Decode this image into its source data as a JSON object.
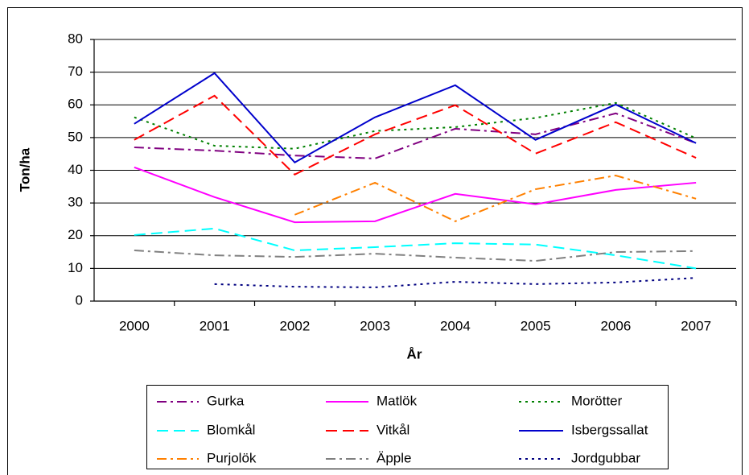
{
  "chart_data": {
    "type": "line",
    "x_label": "År",
    "y_label": "Ton/ha",
    "categories": [
      "2000",
      "2001",
      "2002",
      "2003",
      "2004",
      "2005",
      "2006",
      "2007"
    ],
    "ylim": [
      0,
      80
    ],
    "yticks": [
      0,
      10,
      20,
      30,
      40,
      50,
      60,
      70,
      80
    ],
    "grid": true,
    "series": [
      {
        "name": "Gurka",
        "color": "#800080",
        "dash": "dashdot",
        "values": [
          47,
          46,
          44.5,
          43.6,
          52.7,
          51,
          57.4,
          48.3
        ]
      },
      {
        "name": "Matlök",
        "color": "#ff00ff",
        "dash": "solid",
        "values": [
          40.9,
          31.8,
          24.1,
          24.4,
          32.8,
          29.6,
          34,
          36.2
        ]
      },
      {
        "name": "Morötter",
        "color": "#008000",
        "dash": "dot",
        "values": [
          56.2,
          47.5,
          46.6,
          52,
          53.2,
          56,
          60.6,
          49.8
        ]
      },
      {
        "name": "Blomkål",
        "color": "#00ffff",
        "dash": "dash",
        "values": [
          20.2,
          22.2,
          15.5,
          16.5,
          17.7,
          17.3,
          14,
          10
        ]
      },
      {
        "name": "Vitkål",
        "color": "#ff0000",
        "dash": "dash",
        "values": [
          49.3,
          62.8,
          38.7,
          51,
          59.9,
          45.1,
          54.7,
          43.8
        ]
      },
      {
        "name": "Isbergssallat",
        "color": "#0000cc",
        "dash": "solid",
        "values": [
          54.2,
          69.7,
          42.4,
          56.2,
          66,
          49.3,
          60.1,
          48.3
        ]
      },
      {
        "name": "Purjolök",
        "color": "#ff8000",
        "dash": "dashdot",
        "values": [
          null,
          null,
          26.4,
          36.2,
          24.4,
          34.2,
          38.4,
          31.3
        ]
      },
      {
        "name": "Äpple",
        "color": "#808080",
        "dash": "dashdot",
        "values": [
          15.5,
          14,
          13.5,
          14.5,
          13.3,
          12.3,
          15,
          15.3
        ]
      },
      {
        "name": "Jordgubbar",
        "color": "#000080",
        "dash": "dot",
        "values": [
          null,
          5.2,
          4.4,
          4.2,
          5.9,
          5.2,
          5.7,
          7.1
        ]
      }
    ]
  }
}
